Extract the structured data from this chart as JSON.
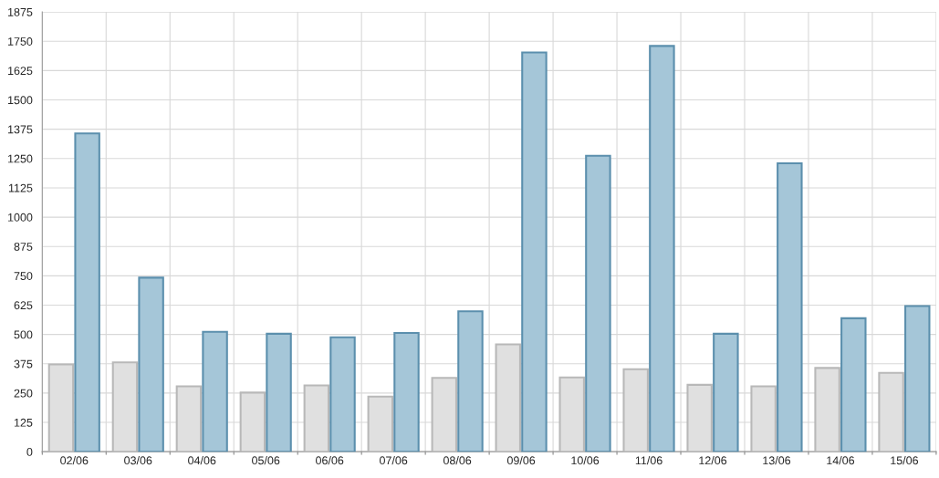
{
  "chart_data": {
    "type": "bar",
    "categories": [
      "02/06",
      "03/06",
      "04/06",
      "05/06",
      "06/06",
      "07/06",
      "08/06",
      "09/06",
      "10/06",
      "11/06",
      "12/06",
      "13/06",
      "14/06",
      "15/06"
    ],
    "series": [
      {
        "color": "#e0e0e0",
        "values": [
          372,
          381,
          279,
          252,
          283,
          235,
          315,
          458,
          317,
          352,
          285,
          279,
          357,
          336
        ]
      },
      {
        "color": "#a5c6d8",
        "values": [
          1357,
          742,
          511,
          503,
          488,
          506,
          599,
          1702,
          1262,
          1730,
          503,
          1230,
          569,
          621
        ]
      }
    ],
    "ylim": [
      0,
      1875
    ],
    "yticks": [
      0,
      125,
      250,
      375,
      500,
      625,
      750,
      875,
      1000,
      1125,
      1250,
      1375,
      1500,
      1625,
      1750,
      1875
    ],
    "grid": true
  }
}
